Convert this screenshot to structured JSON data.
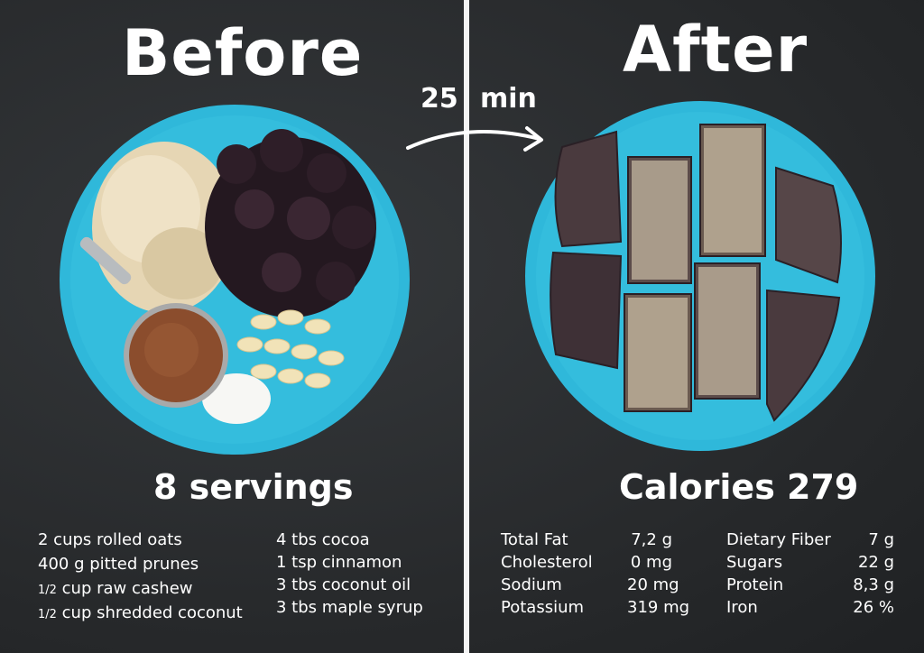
{
  "before": {
    "title": "Before",
    "heading": "8 servings",
    "ingredients_left": [
      {
        "frac": "",
        "text": "2 cups rolled oats"
      },
      {
        "frac": "",
        "text": "400 g pitted prunes"
      },
      {
        "frac": "1/2",
        "text": "cup raw cashew"
      },
      {
        "frac": "1/2",
        "text": "cup shredded coconut"
      }
    ],
    "ingredients_right": [
      "4 tbs cocoa",
      "1 tsp cinnamon",
      "3 tbs coconut oil",
      "3 tbs maple syrup"
    ]
  },
  "time": {
    "value": "25",
    "unit": "min"
  },
  "after": {
    "title": "After",
    "heading": "Calories 279",
    "nutrition_left": [
      {
        "name": "Total Fat",
        "value": "7,2 g"
      },
      {
        "name": "Cholesterol",
        "value": "0 mg"
      },
      {
        "name": "Sodium",
        "value": "20 mg"
      },
      {
        "name": "Potassium",
        "value": "319 mg"
      }
    ],
    "nutrition_right": [
      {
        "name": "Dietary Fiber",
        "value": "7 g"
      },
      {
        "name": "Sugars",
        "value": "22 g"
      },
      {
        "name": "Protein",
        "value": "8,3 g"
      },
      {
        "name": "Iron",
        "value": "26 %"
      }
    ]
  },
  "colors": {
    "plate": "#2fb8da",
    "board": "#2b2d2f",
    "text": "#ffffff"
  }
}
